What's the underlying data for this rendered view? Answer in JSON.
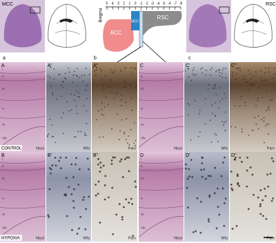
{
  "top": {
    "left_title": "MCC",
    "right_title": "RSC",
    "panel_a": "a",
    "panel_b": "b",
    "panel_c": "c",
    "bregma": {
      "label": "Bregma",
      "ticks": [
        "5",
        "4",
        "3",
        "2",
        "1",
        "0",
        "-1",
        "-2",
        "-3",
        "-4",
        "-5",
        "-6",
        "-7",
        "-8"
      ]
    },
    "regions": [
      "ACC",
      "MCC",
      "RSC"
    ]
  },
  "layers": [
    "I",
    "II",
    "III",
    "V",
    "VI",
    "VIb"
  ],
  "rows": [
    {
      "condition": "CONTROL",
      "panels": [
        {
          "label": "A",
          "stain": "Nissl"
        },
        {
          "label": "A'",
          "stain": "Wfa"
        },
        {
          "label": "A''",
          "stain": "Parv"
        },
        {
          "label": "C",
          "stain": "Nissl"
        },
        {
          "label": "C'",
          "stain": "Wfa"
        },
        {
          "label": "C''",
          "stain": "Parv"
        }
      ]
    },
    {
      "condition": "HYPOXIA",
      "panels": [
        {
          "label": "B",
          "stain": "Nissl"
        },
        {
          "label": "B'",
          "stain": "Wfa"
        },
        {
          "label": "B''",
          "stain": "Parv"
        },
        {
          "label": "D",
          "stain": "Nissl"
        },
        {
          "label": "D'",
          "stain": "Wfa"
        },
        {
          "label": "D''",
          "stain": "Parv"
        }
      ]
    }
  ]
}
